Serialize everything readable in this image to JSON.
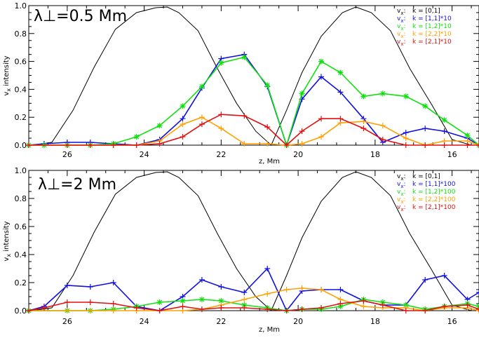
{
  "chart_data": [
    {
      "type": "line",
      "panel_label": "λ⊥=0.5 Mm",
      "xlabel": "z, Mm",
      "ylabel": "vx intensity",
      "ylabel_main": "v",
      "ylabel_sub": "x",
      "ylabel_rest": " intensity",
      "xlim": [
        27.0,
        15.3
      ],
      "ylim": [
        0,
        1.0
      ],
      "x_ticks": [
        26,
        24,
        22,
        20,
        18,
        16
      ],
      "y_ticks": [
        0.0,
        0.2,
        0.4,
        0.6,
        0.8,
        1.0
      ],
      "x_tick_labels": [
        "26",
        "24",
        "22",
        "20",
        "18",
        "16"
      ],
      "y_tick_labels": [
        "0.0",
        "0.2",
        "0.4",
        "0.6",
        "0.8",
        "1.0"
      ],
      "legend_position": "top-right",
      "series": [
        {
          "name": "vx: k = [0,1]",
          "legend_text": "k = [0,1]",
          "color": "#000000",
          "marker": "none",
          "x": [
            26.9,
            26.4,
            25.85,
            25.3,
            24.75,
            24.2,
            23.7,
            23.4,
            23.1,
            22.6,
            22.1,
            21.6,
            21.1,
            20.7,
            20.3,
            19.9,
            19.4,
            18.85,
            18.5,
            18.1,
            17.6,
            17.1,
            16.55,
            16.0,
            15.5
          ],
          "y": [
            0.0,
            0.02,
            0.25,
            0.56,
            0.83,
            0.95,
            0.985,
            0.99,
            0.95,
            0.82,
            0.55,
            0.3,
            0.1,
            0.0,
            0.25,
            0.52,
            0.78,
            0.95,
            0.99,
            0.95,
            0.82,
            0.55,
            0.3,
            0.04,
            0.0
          ]
        },
        {
          "name": "vx: k = [1,1]*10",
          "legend_text": "k = [1,1]*10",
          "color": "#1010e0",
          "marker": "plus",
          "x": [
            27.0,
            26.6,
            26.0,
            25.4,
            24.8,
            24.2,
            23.6,
            23.0,
            22.5,
            22.0,
            21.4,
            20.8,
            20.3,
            19.9,
            19.4,
            18.9,
            18.3,
            17.8,
            17.2,
            16.7,
            16.2,
            15.6,
            15.3
          ],
          "y": [
            0.0,
            0.01,
            0.02,
            0.02,
            0.01,
            0.0,
            0.04,
            0.19,
            0.41,
            0.62,
            0.65,
            0.42,
            0.0,
            0.33,
            0.49,
            0.38,
            0.19,
            0.02,
            0.09,
            0.12,
            0.1,
            0.05,
            0.0
          ]
        },
        {
          "name": "vx: k = [1,2]*10",
          "legend_text": "k = [1,2]*10",
          "color": "#10e010",
          "marker": "star",
          "x": [
            27.0,
            26.6,
            26.0,
            25.4,
            24.8,
            24.2,
            23.6,
            23.0,
            22.5,
            22.0,
            21.4,
            20.8,
            20.3,
            19.9,
            19.4,
            18.9,
            18.3,
            17.8,
            17.2,
            16.7,
            16.2,
            15.6,
            15.3
          ],
          "y": [
            0.0,
            0.0,
            0.0,
            0.0,
            0.01,
            0.06,
            0.14,
            0.28,
            0.42,
            0.59,
            0.63,
            0.43,
            0.0,
            0.37,
            0.6,
            0.52,
            0.35,
            0.37,
            0.35,
            0.28,
            0.18,
            0.07,
            0.0
          ]
        },
        {
          "name": "vx: k = [2,2]*10",
          "legend_text": "k = [2,2]*10",
          "color": "#ffa000",
          "marker": "plus",
          "x": [
            27.0,
            26.0,
            25.4,
            24.8,
            24.2,
            23.6,
            23.0,
            22.5,
            22.0,
            21.4,
            20.8,
            20.3,
            19.9,
            19.4,
            18.9,
            18.3,
            17.8,
            17.2,
            16.7,
            16.2,
            15.6,
            15.3
          ],
          "y": [
            0.0,
            0.0,
            0.0,
            0.0,
            0.0,
            0.03,
            0.15,
            0.2,
            0.12,
            0.01,
            0.01,
            0.0,
            0.01,
            0.06,
            0.16,
            0.17,
            0.14,
            0.05,
            0.0,
            0.03,
            0.03,
            0.0
          ]
        },
        {
          "name": "vx: k = [2,1]*10",
          "legend_text": "k = [2,1]*10",
          "color": "#e01010",
          "marker": "plus",
          "x": [
            27.0,
            26.0,
            25.4,
            24.8,
            24.2,
            23.6,
            23.0,
            22.5,
            22.0,
            21.4,
            20.8,
            20.3,
            19.9,
            19.4,
            18.9,
            18.3,
            17.8,
            17.2,
            16.7,
            16.2,
            15.6,
            15.3
          ],
          "y": [
            0.0,
            0.0,
            0.0,
            0.0,
            0.0,
            0.01,
            0.06,
            0.15,
            0.22,
            0.21,
            0.13,
            0.0,
            0.1,
            0.19,
            0.19,
            0.12,
            0.04,
            0.0,
            0.0,
            0.0,
            0.0,
            0.0
          ]
        }
      ]
    },
    {
      "type": "line",
      "panel_label": "λ⊥=2 Mm",
      "xlabel": "z, Mm",
      "ylabel": "vx intensity",
      "ylabel_main": "v",
      "ylabel_sub": "x",
      "ylabel_rest": " intensity",
      "xlim": [
        27.0,
        15.3
      ],
      "ylim": [
        0,
        1.0
      ],
      "x_ticks": [
        26,
        24,
        22,
        20,
        18,
        16
      ],
      "y_ticks": [
        0.0,
        0.2,
        0.4,
        0.6,
        0.8,
        1.0
      ],
      "x_tick_labels": [
        "26",
        "24",
        "22",
        "20",
        "18",
        "16"
      ],
      "y_tick_labels": [
        "0.0",
        "0.2",
        "0.4",
        "0.6",
        "0.8",
        "1.0"
      ],
      "legend_position": "top-right",
      "series": [
        {
          "name": "vx: k = [0,1]",
          "legend_text": "k = [0,1]",
          "color": "#000000",
          "marker": "none",
          "x": [
            26.9,
            26.4,
            25.85,
            25.3,
            24.75,
            24.2,
            23.7,
            23.4,
            23.1,
            22.6,
            22.1,
            21.6,
            21.1,
            20.7,
            20.3,
            19.9,
            19.4,
            18.85,
            18.5,
            18.1,
            17.6,
            17.1,
            16.55,
            16.0,
            15.5
          ],
          "y": [
            0.0,
            0.02,
            0.25,
            0.56,
            0.83,
            0.95,
            0.985,
            0.99,
            0.95,
            0.82,
            0.55,
            0.3,
            0.1,
            0.0,
            0.25,
            0.52,
            0.78,
            0.95,
            0.99,
            0.95,
            0.82,
            0.55,
            0.3,
            0.04,
            0.0
          ]
        },
        {
          "name": "vx: k = [1,1]*100",
          "legend_text": "k = [1,1]*100",
          "color": "#1010e0",
          "marker": "plus",
          "x": [
            27.0,
            26.6,
            26.0,
            25.4,
            24.8,
            24.2,
            23.6,
            23.0,
            22.5,
            22.0,
            21.4,
            20.8,
            20.3,
            19.9,
            19.4,
            18.9,
            18.3,
            17.8,
            17.2,
            16.7,
            16.2,
            15.6,
            15.3
          ],
          "y": [
            0.0,
            0.03,
            0.18,
            0.17,
            0.2,
            0.03,
            0.0,
            0.1,
            0.22,
            0.17,
            0.13,
            0.3,
            0.0,
            0.14,
            0.15,
            0.15,
            0.07,
            0.04,
            0.04,
            0.22,
            0.25,
            0.08,
            0.13
          ]
        },
        {
          "name": "vx: k = [1,2]*100",
          "legend_text": "k = [1,2]*100",
          "color": "#10e010",
          "marker": "star",
          "x": [
            27.0,
            26.0,
            25.4,
            24.8,
            24.2,
            23.6,
            23.0,
            22.5,
            22.0,
            21.4,
            20.8,
            20.3,
            19.9,
            19.4,
            18.9,
            18.3,
            17.8,
            17.2,
            16.7,
            16.2,
            15.6,
            15.3
          ],
          "y": [
            0.0,
            0.0,
            0.0,
            0.01,
            0.03,
            0.06,
            0.07,
            0.08,
            0.07,
            0.04,
            0.02,
            0.0,
            0.01,
            0.01,
            0.03,
            0.08,
            0.06,
            0.04,
            0.01,
            0.03,
            0.05,
            0.03
          ]
        },
        {
          "name": "vx: k = [2,2]*100",
          "legend_text": "k = [2,2]*100",
          "color": "#ffa000",
          "marker": "plus",
          "x": [
            27.0,
            26.0,
            25.4,
            24.8,
            24.2,
            23.6,
            23.0,
            22.5,
            22.0,
            21.4,
            20.8,
            20.3,
            19.9,
            19.4,
            18.9,
            18.3,
            17.8,
            17.2,
            16.7,
            16.2,
            15.6,
            15.3
          ],
          "y": [
            0.0,
            0.0,
            0.0,
            0.0,
            0.0,
            0.0,
            0.0,
            0.01,
            0.04,
            0.08,
            0.12,
            0.15,
            0.16,
            0.15,
            0.08,
            0.03,
            0.02,
            0.02,
            0.0,
            0.02,
            0.02,
            0.0
          ]
        },
        {
          "name": "vx: k = [2,1]*100",
          "legend_text": "k = [2,1]*100",
          "color": "#e01010",
          "marker": "plus",
          "x": [
            27.0,
            26.6,
            26.0,
            25.4,
            24.8,
            24.2,
            23.6,
            23.0,
            22.5,
            22.0,
            21.4,
            20.8,
            20.3,
            19.9,
            19.4,
            18.9,
            18.3,
            17.8,
            17.2,
            16.7,
            16.2,
            15.6,
            15.3
          ],
          "y": [
            0.0,
            0.02,
            0.06,
            0.06,
            0.05,
            0.02,
            0.0,
            0.03,
            0.01,
            0.02,
            0.02,
            0.01,
            0.0,
            0.01,
            0.02,
            0.05,
            0.07,
            0.04,
            0.0,
            0.0,
            0.03,
            0.04,
            0.01
          ]
        }
      ]
    }
  ]
}
